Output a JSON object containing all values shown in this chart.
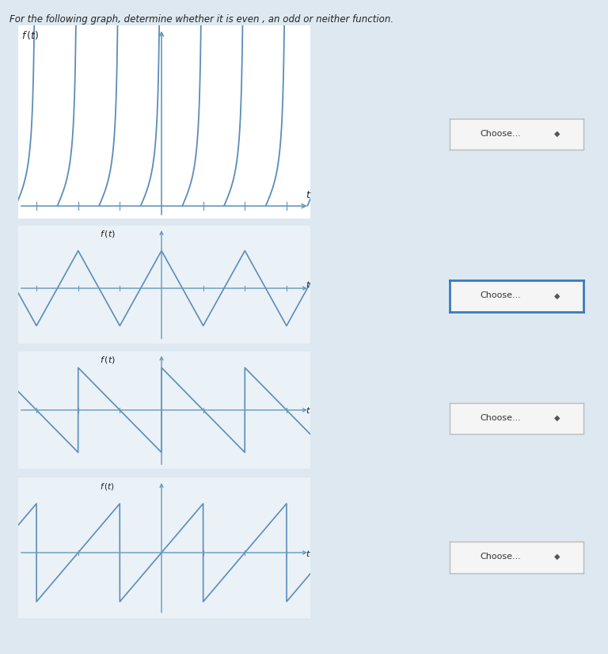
{
  "bg_color": "#dde8f0",
  "panel_bg": "#ffffff",
  "panel_bg2": "#eaf1f7",
  "line_color": "#5b8db8",
  "axis_color": "#6699bb",
  "text_color": "#222222",
  "title_text": "For the following graph, determine whether it is even , an odd or neither function.",
  "xlabel": "t",
  "choose_label": "Choose...",
  "panel1_xlim": [
    -10.8,
    11.2
  ],
  "panel1_ylim": [
    -0.4,
    5.8
  ],
  "panel2_xlim": [
    -10.8,
    11.2
  ],
  "panel2_ylim": [
    -2.2,
    2.5
  ],
  "panel3_xlim": [
    -10.8,
    11.2
  ],
  "panel3_ylim": [
    -2.5,
    2.5
  ],
  "panel4_xlim": [
    -10.8,
    11.2
  ],
  "panel4_ylim": [
    -2.5,
    2.5
  ]
}
